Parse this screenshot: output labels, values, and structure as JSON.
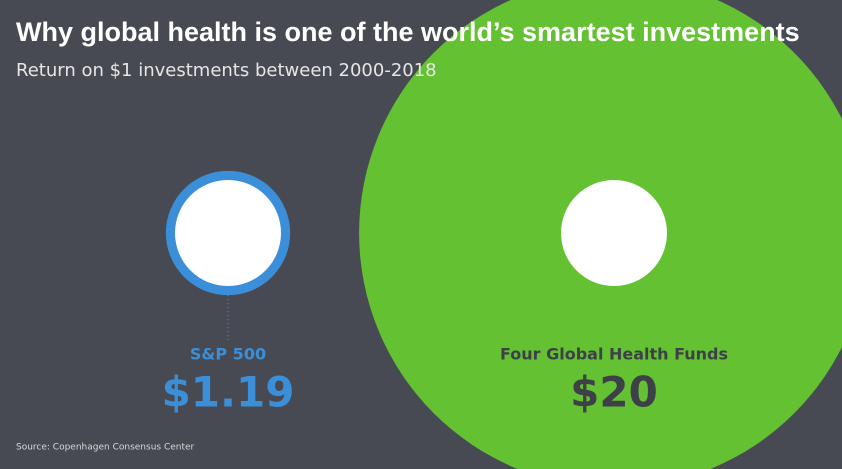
{
  "chart_data": {
    "type": "bubble",
    "title": "Why global health is one of the world’s smartest investments",
    "subtitle": "Return on $1 investments between 2000-2018",
    "source": "Source: Copenhagen Consensus Center",
    "categories": [
      "S&P 500",
      "Four Global Health Funds"
    ],
    "values": [
      1.19,
      20
    ],
    "value_labels": [
      "$1.19",
      "$20"
    ],
    "colors": [
      "#3a8fd8",
      "#63c132"
    ]
  }
}
